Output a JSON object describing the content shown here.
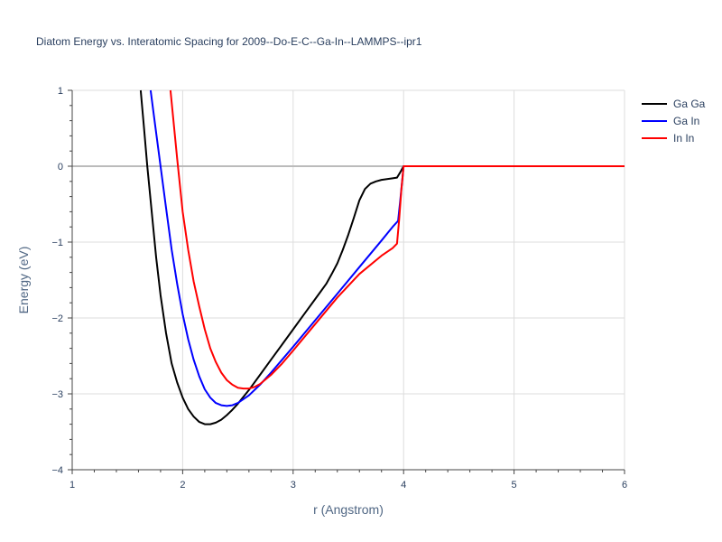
{
  "chart_data": {
    "type": "line",
    "title": "Diatom Energy vs. Interatomic Spacing for 2009--Do-E-C--Ga-In--LAMMPS--ipr1",
    "xlabel": "r (Angstrom)",
    "ylabel": "Energy (eV)",
    "xlim": [
      1,
      6
    ],
    "ylim": [
      -4,
      1
    ],
    "xticks": [
      1,
      2,
      3,
      4,
      5,
      6
    ],
    "yticks": [
      -4,
      -3,
      -2,
      -1,
      0,
      1
    ],
    "grid": true,
    "legend_position": "top-right",
    "series": [
      {
        "name": "Ga Ga",
        "color": "#000000",
        "x": [
          1.62,
          1.65,
          1.68,
          1.72,
          1.76,
          1.8,
          1.85,
          1.9,
          1.95,
          2.0,
          2.05,
          2.1,
          2.15,
          2.2,
          2.25,
          2.3,
          2.35,
          2.4,
          2.45,
          2.5,
          2.6,
          2.7,
          2.8,
          2.9,
          3.0,
          3.1,
          3.2,
          3.25,
          3.3,
          3.35,
          3.4,
          3.45,
          3.5,
          3.55,
          3.6,
          3.65,
          3.7,
          3.75,
          3.8,
          3.85,
          3.9,
          3.94,
          3.97,
          4.0,
          4.5,
          5.0,
          5.5,
          6.0
        ],
        "y": [
          1.0,
          0.5,
          0.0,
          -0.6,
          -1.2,
          -1.7,
          -2.2,
          -2.6,
          -2.85,
          -3.05,
          -3.2,
          -3.3,
          -3.37,
          -3.4,
          -3.4,
          -3.38,
          -3.34,
          -3.28,
          -3.21,
          -3.13,
          -2.95,
          -2.75,
          -2.55,
          -2.35,
          -2.15,
          -1.95,
          -1.75,
          -1.65,
          -1.55,
          -1.42,
          -1.28,
          -1.1,
          -0.9,
          -0.68,
          -0.45,
          -0.3,
          -0.23,
          -0.2,
          -0.18,
          -0.17,
          -0.16,
          -0.15,
          -0.08,
          0.0,
          0.0,
          0.0,
          0.0,
          0.0
        ]
      },
      {
        "name": "Ga In",
        "color": "#0000ff",
        "x": [
          1.71,
          1.75,
          1.8,
          1.85,
          1.9,
          1.95,
          2.0,
          2.05,
          2.1,
          2.15,
          2.2,
          2.25,
          2.3,
          2.35,
          2.4,
          2.45,
          2.5,
          2.6,
          2.7,
          2.8,
          2.9,
          3.0,
          3.2,
          3.4,
          3.6,
          3.8,
          3.9,
          3.95,
          3.97,
          4.0,
          4.5,
          5.0,
          5.5,
          6.0
        ],
        "y": [
          1.0,
          0.55,
          0.0,
          -0.55,
          -1.1,
          -1.55,
          -1.95,
          -2.28,
          -2.55,
          -2.77,
          -2.94,
          -3.05,
          -3.12,
          -3.15,
          -3.16,
          -3.15,
          -3.12,
          -3.02,
          -2.88,
          -2.72,
          -2.55,
          -2.38,
          -2.03,
          -1.68,
          -1.33,
          -0.98,
          -0.8,
          -0.72,
          -0.45,
          0.0,
          0.0,
          0.0,
          0.0,
          0.0
        ]
      },
      {
        "name": "In In",
        "color": "#ff0000",
        "x": [
          1.89,
          1.92,
          1.95,
          2.0,
          2.05,
          2.1,
          2.15,
          2.2,
          2.25,
          2.3,
          2.35,
          2.4,
          2.45,
          2.5,
          2.55,
          2.6,
          2.65,
          2.7,
          2.8,
          2.9,
          3.0,
          3.2,
          3.4,
          3.6,
          3.8,
          3.9,
          3.94,
          3.96,
          3.98,
          4.0,
          4.5,
          5.0,
          5.5,
          6.0
        ],
        "y": [
          1.0,
          0.55,
          0.1,
          -0.6,
          -1.1,
          -1.52,
          -1.85,
          -2.15,
          -2.4,
          -2.58,
          -2.72,
          -2.82,
          -2.88,
          -2.92,
          -2.93,
          -2.93,
          -2.91,
          -2.87,
          -2.75,
          -2.6,
          -2.43,
          -2.08,
          -1.73,
          -1.42,
          -1.18,
          -1.08,
          -1.02,
          -0.7,
          -0.3,
          0.0,
          0.0,
          0.0,
          0.0,
          0.0
        ]
      }
    ]
  }
}
